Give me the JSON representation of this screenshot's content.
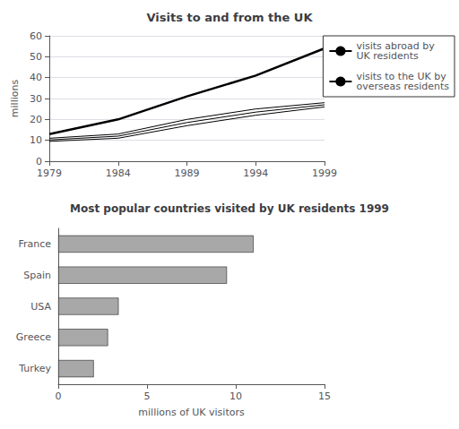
{
  "chart_data": [
    {
      "type": "line",
      "title": "Visits to and from the UK",
      "ylabel": "millions",
      "x": [
        1979,
        1984,
        1989,
        1994,
        1999
      ],
      "series": [
        {
          "name": "visits abroad by\nUK residents",
          "color": "#000000",
          "values": [
            13,
            20,
            31,
            41,
            54
          ]
        },
        {
          "name": "visits to the UK by\noverseas residents",
          "color": "#000000",
          "values": [
            11,
            13,
            20,
            25,
            28
          ]
        },
        {
          "name": "visits to the UK by\noverseas residents",
          "color": "#000000",
          "values": [
            10.2,
            12,
            18.5,
            23.5,
            27
          ]
        },
        {
          "name": "visits to the UK by\noverseas residents",
          "color": "#000000",
          "values": [
            9.5,
            11,
            17,
            22,
            26
          ]
        }
      ],
      "xlim": [
        1979,
        1999
      ],
      "xticks": [
        1979,
        1984,
        1989,
        1994,
        1999
      ],
      "ylim": [
        0,
        60
      ],
      "yticks": [
        0,
        10,
        20,
        30,
        40,
        50,
        60
      ],
      "grid": true,
      "legend": "right"
    },
    {
      "type": "bar",
      "title": "Most popular countries visited by UK residents 1999",
      "orientation": "horizontal",
      "categories": [
        "France",
        "Spain",
        "USA",
        "Greece",
        "Turkey"
      ],
      "values": [
        11.0,
        9.5,
        3.4,
        2.8,
        2.0
      ],
      "color": "#a8a8a8",
      "xlabel": "millions of UK visitors",
      "xlim": [
        0,
        15
      ],
      "xticks": [
        0,
        5,
        10,
        15
      ],
      "grid": false
    }
  ]
}
